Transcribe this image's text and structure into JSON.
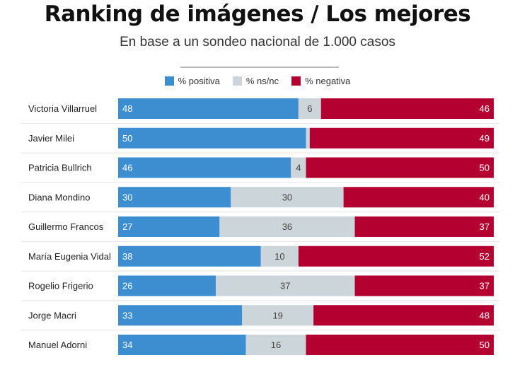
{
  "chart_data": {
    "type": "bar",
    "orientation": "horizontal",
    "stacked": true,
    "normalized": true,
    "title": "Ranking de imágenes / Los mejores",
    "subtitle": "En base a un sondeo nacional de 1.000 casos",
    "categories": [
      "Victoria Villarruel",
      "Javier Milei",
      "Patricia Bullrich",
      "Diana Mondino",
      "Guillermo Francos",
      "María Eugenia Vidal",
      "Rogelio Frigerio",
      "Jorge Macri",
      "Manuel Adorni"
    ],
    "series": [
      {
        "name": "% positiva",
        "color": "#3d8ed0",
        "values": [
          48,
          50,
          46,
          30,
          27,
          38,
          26,
          33,
          34
        ]
      },
      {
        "name": "% ns/nc",
        "color": "#ccd5da",
        "values": [
          6,
          1,
          4,
          30,
          36,
          10,
          37,
          19,
          16
        ]
      },
      {
        "name": "% negativa",
        "color": "#b40031",
        "values": [
          46,
          49,
          50,
          40,
          37,
          52,
          37,
          48,
          50
        ]
      }
    ],
    "value_labels": [
      [
        "48",
        "6",
        "46"
      ],
      [
        "50",
        "",
        "49"
      ],
      [
        "46",
        "4",
        "50"
      ],
      [
        "30",
        "30",
        "40"
      ],
      [
        "27",
        "36",
        "37"
      ],
      [
        "38",
        "10",
        "52"
      ],
      [
        "26",
        "37",
        "37"
      ],
      [
        "33",
        "19",
        "48"
      ],
      [
        "34",
        "16",
        "50"
      ]
    ],
    "legend_position": "top-center",
    "grid": false
  }
}
